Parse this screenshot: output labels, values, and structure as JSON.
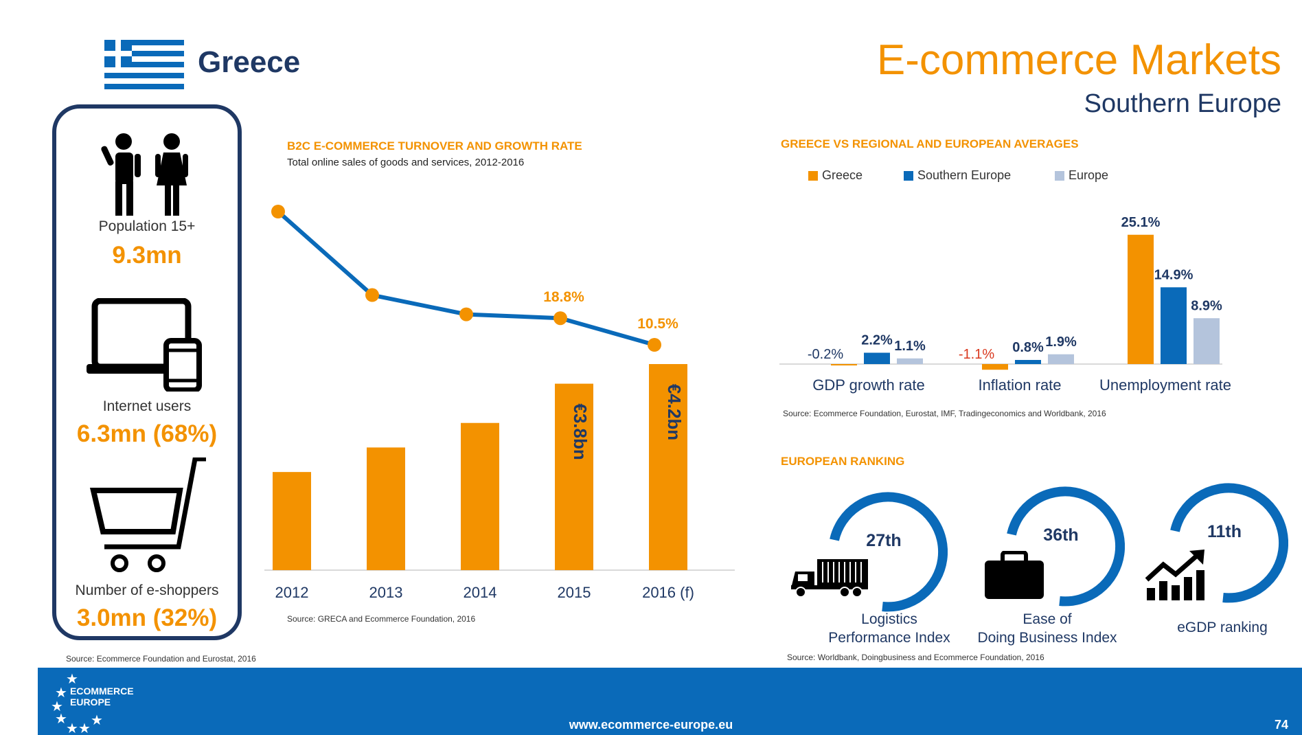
{
  "header": {
    "country": "Greece",
    "title": "E-commerce Markets",
    "subtitle": "Southern Europe"
  },
  "stats": [
    {
      "label": "Population 15+",
      "value": "9.3mn"
    },
    {
      "label": "Internet users",
      "value": "6.3mn (68%)"
    },
    {
      "label": "Number of e-shoppers",
      "value": "3.0mn (32%)"
    }
  ],
  "stats_source": "Source: Ecommerce Foundation and Eurostat, 2016",
  "turnover": {
    "title": "B2C E-COMMERCE TURNOVER AND GROWTH RATE",
    "subtitle": "Total online sales of goods and services, 2012-2016",
    "source": "Source: GRECA and Ecommerce Foundation, 2016"
  },
  "averages": {
    "title": "GREECE VS REGIONAL AND EUROPEAN AVERAGES",
    "source": "Source: Ecommerce Foundation, Eurostat, IMF, Tradingeconomics and Worldbank, 2016"
  },
  "ranking": {
    "title": "EUROPEAN RANKING",
    "source": "Source: Worldbank, Doingbusiness and Ecommerce Foundation, 2016",
    "items": [
      {
        "rank": "27th",
        "label_line1": "Logistics",
        "label_line2": "Performance Index"
      },
      {
        "rank": "36th",
        "label_line1": "Ease of",
        "label_line2": "Doing Business Index"
      },
      {
        "rank": "11th",
        "label_line1": "eGDP ranking",
        "label_line2": ""
      }
    ]
  },
  "footer": {
    "url": "www.ecommerce-europe.eu",
    "page": "74",
    "logo_line1": "ECOMMERCE",
    "logo_line2": "EUROPE"
  },
  "colors": {
    "orange": "#f39200",
    "navy": "#1f3864",
    "blue": "#0a6ab9",
    "light_blue": "#b4c4dc",
    "red": "#d9381e"
  },
  "chart_data": [
    {
      "type": "bar",
      "title": "B2C E-COMMERCE TURNOVER AND GROWTH RATE",
      "categories": [
        "2012",
        "2013",
        "2014",
        "2015",
        "2016 (f)"
      ],
      "series": [
        {
          "name": "Turnover (€bn)",
          "values": [
            2.0,
            2.5,
            3.0,
            3.8,
            4.2
          ],
          "labels": [
            "",
            "",
            "",
            "€3.8bn",
            "€4.2bn"
          ]
        },
        {
          "name": "Growth rate (%)",
          "type": "line",
          "values": [
            52.0,
            26.0,
            20.0,
            18.8,
            10.5
          ],
          "labels": [
            "",
            "",
            "",
            "18.8%",
            "10.5%"
          ]
        }
      ],
      "xlabel": "",
      "ylabel": ""
    },
    {
      "type": "bar",
      "title": "GREECE VS REGIONAL AND EUROPEAN AVERAGES",
      "categories": [
        "GDP growth rate",
        "Inflation rate",
        "Unemployment rate"
      ],
      "series": [
        {
          "name": "Greece",
          "values": [
            -0.2,
            -1.1,
            25.1
          ],
          "labels": [
            "-0.2%",
            "-1.1%",
            "25.1%"
          ]
        },
        {
          "name": "Southern Europe",
          "values": [
            2.2,
            0.8,
            14.9
          ],
          "labels": [
            "2.2%",
            "0.8%",
            "14.9%"
          ]
        },
        {
          "name": "Europe",
          "values": [
            1.1,
            1.9,
            8.9
          ],
          "labels": [
            "1.1%",
            "1.9%",
            "8.9%"
          ]
        }
      ],
      "ylim": [
        -2,
        26
      ]
    }
  ]
}
